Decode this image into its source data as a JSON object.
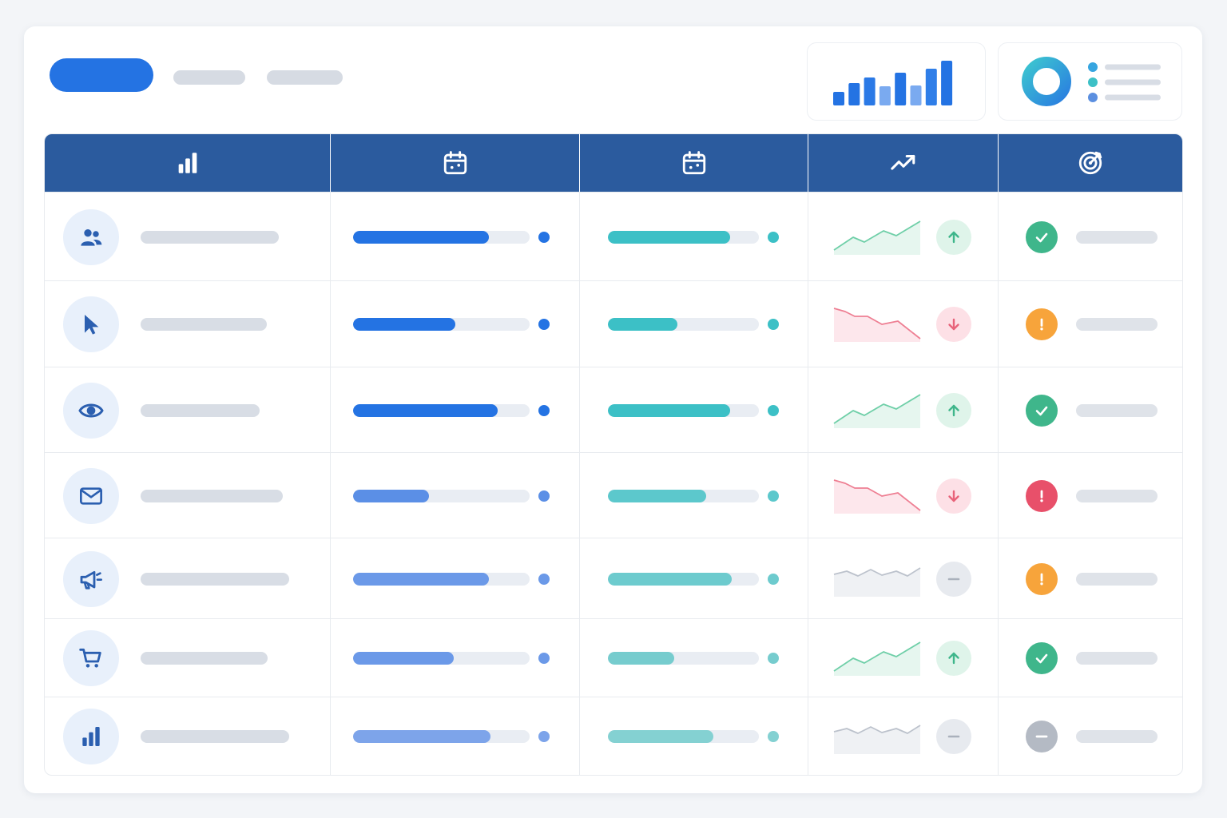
{
  "colors": {
    "accent": "#2473e3",
    "header": "#2b5b9e",
    "teal": "#3cc0c6",
    "up": "#3fb68b",
    "down": "#e8637a",
    "warning": "#f7a43b",
    "neutral": "#b4bac4"
  },
  "toolbar": {
    "primary": "filled-pill-button",
    "nav": [
      "placeholder-pill",
      "placeholder-pill"
    ]
  },
  "summary": {
    "bars": [
      0.3,
      0.5,
      0.62,
      0.42,
      0.74,
      0.44,
      0.82,
      1.0
    ],
    "donut_legend": [
      "#36a5e0",
      "#3cc0c6",
      "#5b8fe0"
    ]
  },
  "columns": [
    {
      "icon": "bar-chart-icon"
    },
    {
      "icon": "calendar-icon"
    },
    {
      "icon": "calendar-icon"
    },
    {
      "icon": "trending-up-icon"
    },
    {
      "icon": "target-icon"
    }
  ],
  "rows": [
    {
      "icon": "users-icon",
      "progress1": 0.77,
      "progress2": 0.81,
      "trend": "up",
      "status": "success"
    },
    {
      "icon": "cursor-icon",
      "progress1": 0.58,
      "progress2": 0.46,
      "trend": "down",
      "status": "warning"
    },
    {
      "icon": "eye-icon",
      "progress1": 0.82,
      "progress2": 0.81,
      "trend": "up",
      "status": "success"
    },
    {
      "icon": "mail-icon",
      "progress1": 0.43,
      "progress2": 0.65,
      "trend": "down",
      "status": "error"
    },
    {
      "icon": "megaphone-icon",
      "progress1": 0.77,
      "progress2": 0.82,
      "trend": "flat",
      "status": "warning"
    },
    {
      "icon": "cart-icon",
      "progress1": 0.57,
      "progress2": 0.44,
      "trend": "up",
      "status": "success"
    },
    {
      "icon": "bar-chart-icon",
      "progress1": 0.78,
      "progress2": 0.7,
      "trend": "flat",
      "status": "neutral"
    }
  ]
}
